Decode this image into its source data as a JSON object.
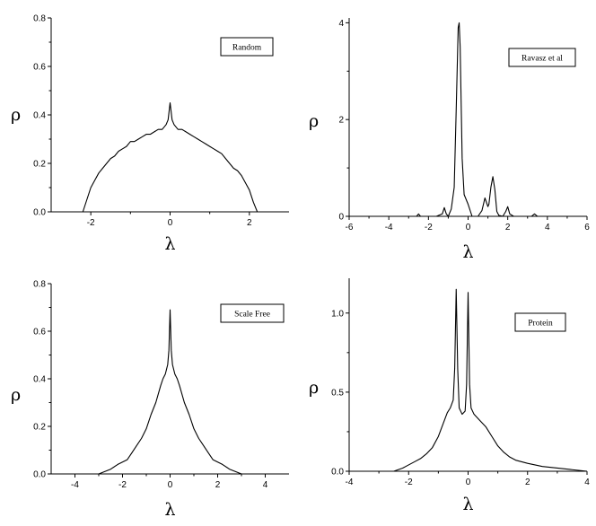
{
  "chart_data": [
    {
      "id": "random",
      "type": "line",
      "legend": "Random",
      "xlabel": "λ",
      "ylabel": "ρ",
      "xlim": [
        -3,
        3
      ],
      "ylim": [
        0,
        0.8
      ],
      "xticks": [
        -2,
        0,
        2
      ],
      "xtick_labels": [
        "-2",
        "0",
        "2"
      ],
      "yticks": [
        0.0,
        0.2,
        0.4,
        0.6,
        0.8
      ],
      "ytick_labels": [
        "0.0",
        "0.2",
        "0.4",
        "0.6",
        "0.8"
      ],
      "series": [
        {
          "x": [
            -2.2,
            -2.1,
            -2.0,
            -1.9,
            -1.8,
            -1.7,
            -1.6,
            -1.5,
            -1.4,
            -1.3,
            -1.2,
            -1.1,
            -1.0,
            -0.9,
            -0.8,
            -0.7,
            -0.6,
            -0.5,
            -0.4,
            -0.3,
            -0.2,
            -0.1,
            -0.05,
            0.0,
            0.05,
            0.1,
            0.2,
            0.3,
            0.4,
            0.5,
            0.6,
            0.7,
            0.8,
            0.9,
            1.0,
            1.1,
            1.2,
            1.3,
            1.4,
            1.5,
            1.6,
            1.7,
            1.8,
            1.9,
            2.0,
            2.1,
            2.2
          ],
          "y": [
            0.0,
            0.05,
            0.1,
            0.13,
            0.16,
            0.18,
            0.2,
            0.22,
            0.23,
            0.25,
            0.26,
            0.27,
            0.29,
            0.29,
            0.3,
            0.31,
            0.32,
            0.32,
            0.33,
            0.34,
            0.34,
            0.36,
            0.38,
            0.45,
            0.38,
            0.36,
            0.34,
            0.34,
            0.33,
            0.32,
            0.31,
            0.3,
            0.29,
            0.28,
            0.27,
            0.26,
            0.25,
            0.24,
            0.22,
            0.2,
            0.18,
            0.17,
            0.15,
            0.12,
            0.09,
            0.04,
            0.0
          ]
        }
      ]
    },
    {
      "id": "ravasz",
      "type": "line",
      "legend": "Ravasz et al",
      "xlabel": "λ",
      "ylabel": "ρ",
      "xlim": [
        -6,
        6
      ],
      "ylim": [
        0,
        4.1
      ],
      "xticks": [
        -6,
        -4,
        -2,
        0,
        2,
        4,
        6
      ],
      "xtick_labels": [
        "-6",
        "-4",
        "-2",
        "0",
        "2",
        "4",
        "6"
      ],
      "yticks": [
        0,
        2,
        4
      ],
      "ytick_labels": [
        "0",
        "2",
        "4"
      ],
      "series": [
        {
          "x": [
            -6.0,
            -3.0,
            -2.6,
            -2.5,
            -2.4,
            -1.6,
            -1.3,
            -1.2,
            -1.1,
            -1.0,
            -0.85,
            -0.7,
            -0.6,
            -0.5,
            -0.45,
            -0.4,
            -0.3,
            -0.2,
            -0.1,
            0.0,
            0.2,
            0.5,
            0.7,
            0.85,
            1.0,
            1.05,
            1.15,
            1.25,
            1.35,
            1.45,
            1.55,
            1.75,
            1.9,
            2.0,
            2.1,
            2.3,
            3.2,
            3.35,
            3.5,
            6.0
          ],
          "y": [
            0.0,
            0.0,
            0.0,
            0.05,
            0.0,
            0.0,
            0.05,
            0.18,
            0.05,
            0.0,
            0.15,
            0.6,
            2.2,
            3.9,
            4.0,
            3.5,
            1.2,
            0.45,
            0.35,
            0.25,
            0.0,
            0.0,
            0.12,
            0.38,
            0.2,
            0.25,
            0.6,
            0.82,
            0.55,
            0.1,
            0.02,
            0.0,
            0.1,
            0.2,
            0.05,
            0.0,
            0.0,
            0.05,
            0.0,
            0.0
          ]
        }
      ]
    },
    {
      "id": "scale-free",
      "type": "line",
      "legend": "Scale Free",
      "xlabel": "λ",
      "ylabel": "ρ",
      "xlim": [
        -5,
        5
      ],
      "ylim": [
        0,
        0.8
      ],
      "xticks": [
        -4,
        -2,
        0,
        2,
        4
      ],
      "xtick_labels": [
        "-4",
        "-2",
        "0",
        "2",
        "4"
      ],
      "yticks": [
        0.0,
        0.2,
        0.4,
        0.6,
        0.8
      ],
      "ytick_labels": [
        "0.0",
        "0.2",
        "0.4",
        "0.6",
        "0.8"
      ],
      "series": [
        {
          "x": [
            -4.4,
            -3.6,
            -3.0,
            -2.5,
            -2.2,
            -2.0,
            -1.8,
            -1.6,
            -1.4,
            -1.2,
            -1.0,
            -0.8,
            -0.6,
            -0.4,
            -0.3,
            -0.2,
            -0.1,
            -0.05,
            0.0,
            0.05,
            0.1,
            0.2,
            0.3,
            0.4,
            0.6,
            0.8,
            1.0,
            1.2,
            1.4,
            1.6,
            1.8,
            2.0,
            2.2,
            2.5,
            3.0,
            3.6,
            4.4
          ],
          "y": [
            0.0,
            0.0,
            0.0,
            0.02,
            0.04,
            0.05,
            0.06,
            0.09,
            0.12,
            0.15,
            0.19,
            0.25,
            0.3,
            0.37,
            0.4,
            0.42,
            0.46,
            0.52,
            0.69,
            0.52,
            0.46,
            0.42,
            0.4,
            0.37,
            0.3,
            0.25,
            0.19,
            0.15,
            0.12,
            0.09,
            0.06,
            0.05,
            0.04,
            0.02,
            0.0,
            0.0,
            0.0
          ]
        }
      ]
    },
    {
      "id": "protein",
      "type": "line",
      "legend": "Protein",
      "xlabel": "λ",
      "ylabel": "ρ",
      "xlim": [
        -4,
        4
      ],
      "ylim": [
        0,
        1.22
      ],
      "xticks": [
        -4,
        -2,
        0,
        2,
        4
      ],
      "xtick_labels": [
        "-4",
        "-2",
        "0",
        "2",
        "4"
      ],
      "yticks": [
        0.0,
        0.5,
        1.0
      ],
      "ytick_labels": [
        "0.0",
        "0.5",
        "1.0"
      ],
      "series": [
        {
          "x": [
            -4.0,
            -2.5,
            -2.2,
            -2.0,
            -1.8,
            -1.6,
            -1.4,
            -1.2,
            -1.0,
            -0.8,
            -0.7,
            -0.6,
            -0.5,
            -0.45,
            -0.4,
            -0.35,
            -0.3,
            -0.2,
            -0.1,
            -0.05,
            0.0,
            0.05,
            0.1,
            0.2,
            0.4,
            0.6,
            0.8,
            1.0,
            1.2,
            1.4,
            1.6,
            1.8,
            2.0,
            2.5,
            3.0,
            3.5,
            4.0
          ],
          "y": [
            0.0,
            0.0,
            0.02,
            0.04,
            0.06,
            0.08,
            0.11,
            0.15,
            0.22,
            0.32,
            0.37,
            0.4,
            0.45,
            0.65,
            1.15,
            0.65,
            0.4,
            0.36,
            0.38,
            0.55,
            1.13,
            0.55,
            0.4,
            0.36,
            0.32,
            0.28,
            0.22,
            0.16,
            0.12,
            0.09,
            0.07,
            0.06,
            0.05,
            0.03,
            0.02,
            0.01,
            0.0
          ]
        }
      ]
    }
  ]
}
